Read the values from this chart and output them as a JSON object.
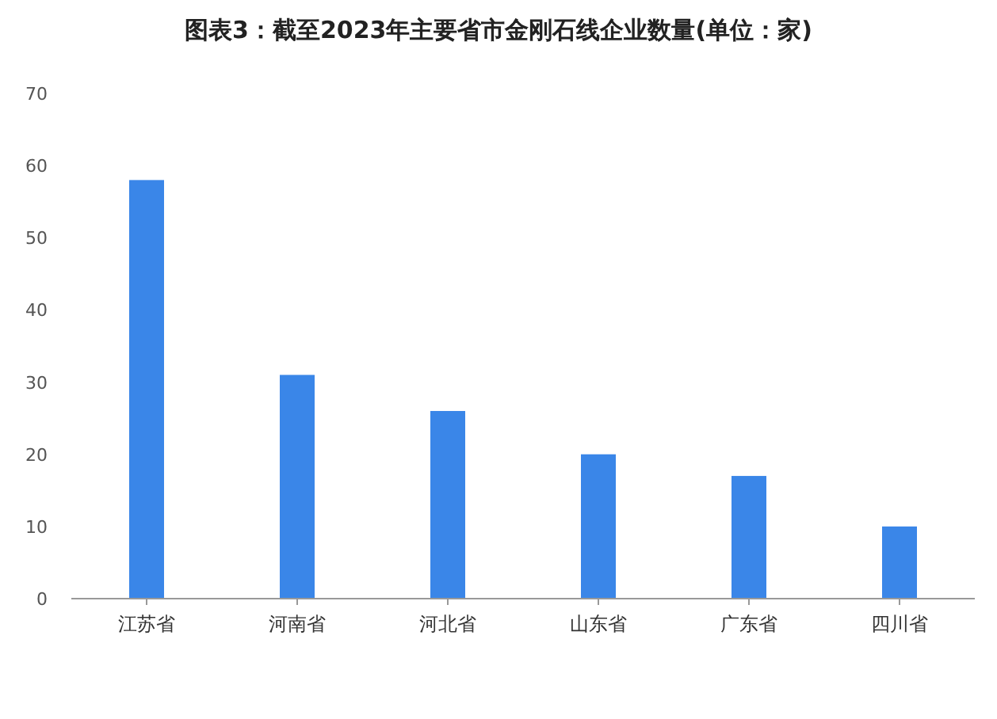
{
  "chart_data": {
    "type": "bar",
    "title": "图表3：截至2023年主要省市金刚石线企业数量(单位：家)",
    "categories": [
      "江苏省",
      "河南省",
      "河北省",
      "山东省",
      "广东省",
      "四川省"
    ],
    "values": [
      58,
      31,
      26,
      20,
      17,
      10
    ],
    "color": "#3a86e8",
    "ylim": [
      0,
      70
    ],
    "yticks": [
      0,
      10,
      20,
      30,
      40,
      50,
      60,
      70
    ],
    "grid": false
  }
}
